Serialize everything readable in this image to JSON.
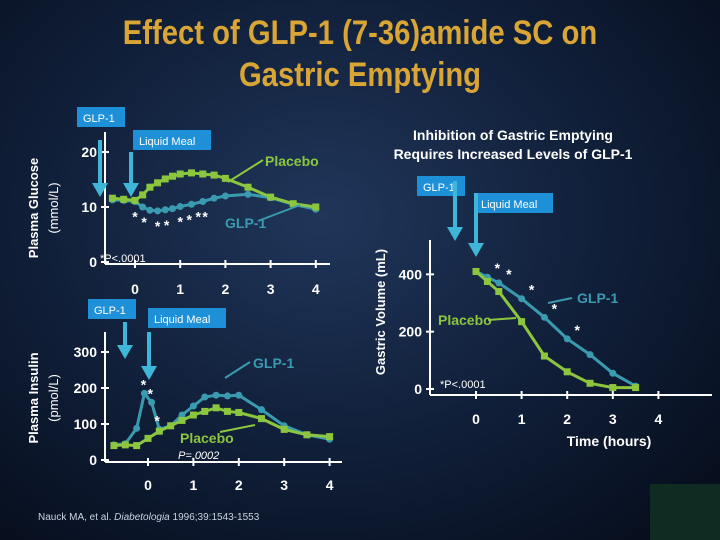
{
  "slide": {
    "title_line1": "Effect of GLP-1 (7-36)amide SC on",
    "title_line2": "Gastric Emptying",
    "citation_authors": "Nauck MA, et al. ",
    "citation_journal": "Diabetologia",
    "citation_rest": " 1996;39:1543-1553"
  },
  "colors": {
    "glp1": "#3a9bb0",
    "placebo": "#8cc63f",
    "arrow": "#3fb6d8",
    "arrow_label_bg": "#1e90d8",
    "title": "#d9a535",
    "axis": "#ffffff"
  },
  "chart_data": [
    {
      "id": "glucose",
      "type": "line",
      "ylabel": "Plasma Glucose (mmol/L)",
      "xlabel": "",
      "xlim": [
        -0.4,
        4.2
      ],
      "ylim": [
        0,
        20
      ],
      "x_ticks": [
        "0",
        "1",
        "2",
        "3",
        "4"
      ],
      "y_ticks": [
        "0",
        "10",
        "20"
      ],
      "annotations": {
        "glp1_arrow_label": "GLP-1",
        "meal_arrow_label": "Liquid Meal",
        "placebo_label": "Placebo",
        "glp1_label": "GLP-1",
        "significance": "*P<.0001"
      },
      "series": [
        {
          "name": "GLP-1",
          "x": [
            -0.5,
            -0.25,
            0,
            0.17,
            0.33,
            0.5,
            0.67,
            0.83,
            1,
            1.25,
            1.5,
            1.75,
            2,
            2.5,
            3,
            3.5,
            4
          ],
          "y": [
            11.3,
            11.2,
            11.0,
            10.0,
            9.4,
            9.3,
            9.5,
            9.7,
            10.1,
            10.5,
            11.0,
            11.6,
            12.0,
            12.3,
            11.7,
            10.5,
            9.6
          ]
        },
        {
          "name": "Placebo",
          "x": [
            -0.5,
            -0.25,
            0,
            0.17,
            0.33,
            0.5,
            0.67,
            0.83,
            1,
            1.25,
            1.5,
            1.75,
            2,
            2.5,
            3,
            3.5,
            4
          ],
          "y": [
            11.6,
            11.4,
            11.2,
            12.2,
            13.6,
            14.4,
            15.1,
            15.6,
            16.0,
            16.2,
            16.0,
            15.8,
            15.2,
            13.6,
            11.8,
            10.6,
            10.0
          ]
        }
      ],
      "asterisk_x": [
        0.0,
        0.2,
        0.5,
        0.7,
        1.0,
        1.2,
        1.4,
        1.55
      ]
    },
    {
      "id": "insulin",
      "type": "line",
      "ylabel": "Plasma Insulin (pmol/L)",
      "xlabel": "",
      "xlim": [
        -0.7,
        4.4
      ],
      "ylim": [
        0,
        300
      ],
      "x_ticks": [
        "0",
        "1",
        "2",
        "3",
        "4"
      ],
      "y_ticks": [
        "0",
        "100",
        "200",
        "300"
      ],
      "annotations": {
        "glp1_arrow_label": "GLP-1",
        "meal_arrow_label": "Liquid Meal",
        "placebo_label": "Placebo",
        "glp1_label": "GLP-1",
        "p_value": "P=.0002"
      },
      "series": [
        {
          "name": "GLP-1",
          "x": [
            -0.75,
            -0.5,
            -0.25,
            -0.08,
            0.08,
            0.25,
            0.5,
            0.75,
            1,
            1.25,
            1.5,
            1.75,
            2,
            2.5,
            3,
            3.5,
            4
          ],
          "y": [
            42,
            45,
            88,
            185,
            160,
            85,
            95,
            125,
            150,
            175,
            180,
            178,
            180,
            140,
            95,
            70,
            58
          ]
        },
        {
          "name": "Placebo",
          "x": [
            -0.75,
            -0.5,
            -0.25,
            0,
            0.25,
            0.5,
            0.75,
            1,
            1.25,
            1.5,
            1.75,
            2,
            2.5,
            3,
            3.5,
            4
          ],
          "y": [
            40,
            42,
            40,
            60,
            80,
            95,
            110,
            125,
            135,
            145,
            135,
            132,
            115,
            85,
            70,
            65
          ]
        }
      ],
      "asterisk_x": [
        -0.1,
        0.05,
        0.2
      ]
    },
    {
      "id": "gastric-volume",
      "type": "line",
      "title": "Inhibition of Gastric Emptying Requires Increased Levels of GLP-1",
      "title_line1": "Inhibition of Gastric Emptying",
      "title_line2": "Requires Increased Levels of GLP-1",
      "ylabel": "Gastric Volume (mL)",
      "xlabel": "Time (hours)",
      "xlim": [
        -0.8,
        4.3
      ],
      "ylim": [
        0,
        450
      ],
      "x_ticks": [
        "0",
        "1",
        "2",
        "3",
        "4"
      ],
      "y_ticks": [
        "0",
        "200",
        "400"
      ],
      "annotations": {
        "glp1_arrow_label": "GLP-1",
        "meal_arrow_label": "Liquid Meal",
        "placebo_label": "Placebo",
        "glp1_label": "GLP-1",
        "significance": "*P<.0001"
      },
      "series": [
        {
          "name": "GLP-1",
          "x": [
            0,
            0.25,
            0.5,
            1,
            1.5,
            2,
            2.5,
            3,
            3.5
          ],
          "y": [
            410,
            390,
            370,
            315,
            250,
            175,
            120,
            55,
            10
          ]
        },
        {
          "name": "Placebo",
          "x": [
            0,
            0.25,
            0.5,
            1,
            1.5,
            2,
            2.5,
            3,
            3.5
          ],
          "y": [
            410,
            375,
            340,
            235,
            115,
            60,
            20,
            5,
            5
          ]
        }
      ],
      "asterisk_x": [
        0.25,
        0.5,
        1.0,
        1.5,
        2.0
      ]
    }
  ]
}
